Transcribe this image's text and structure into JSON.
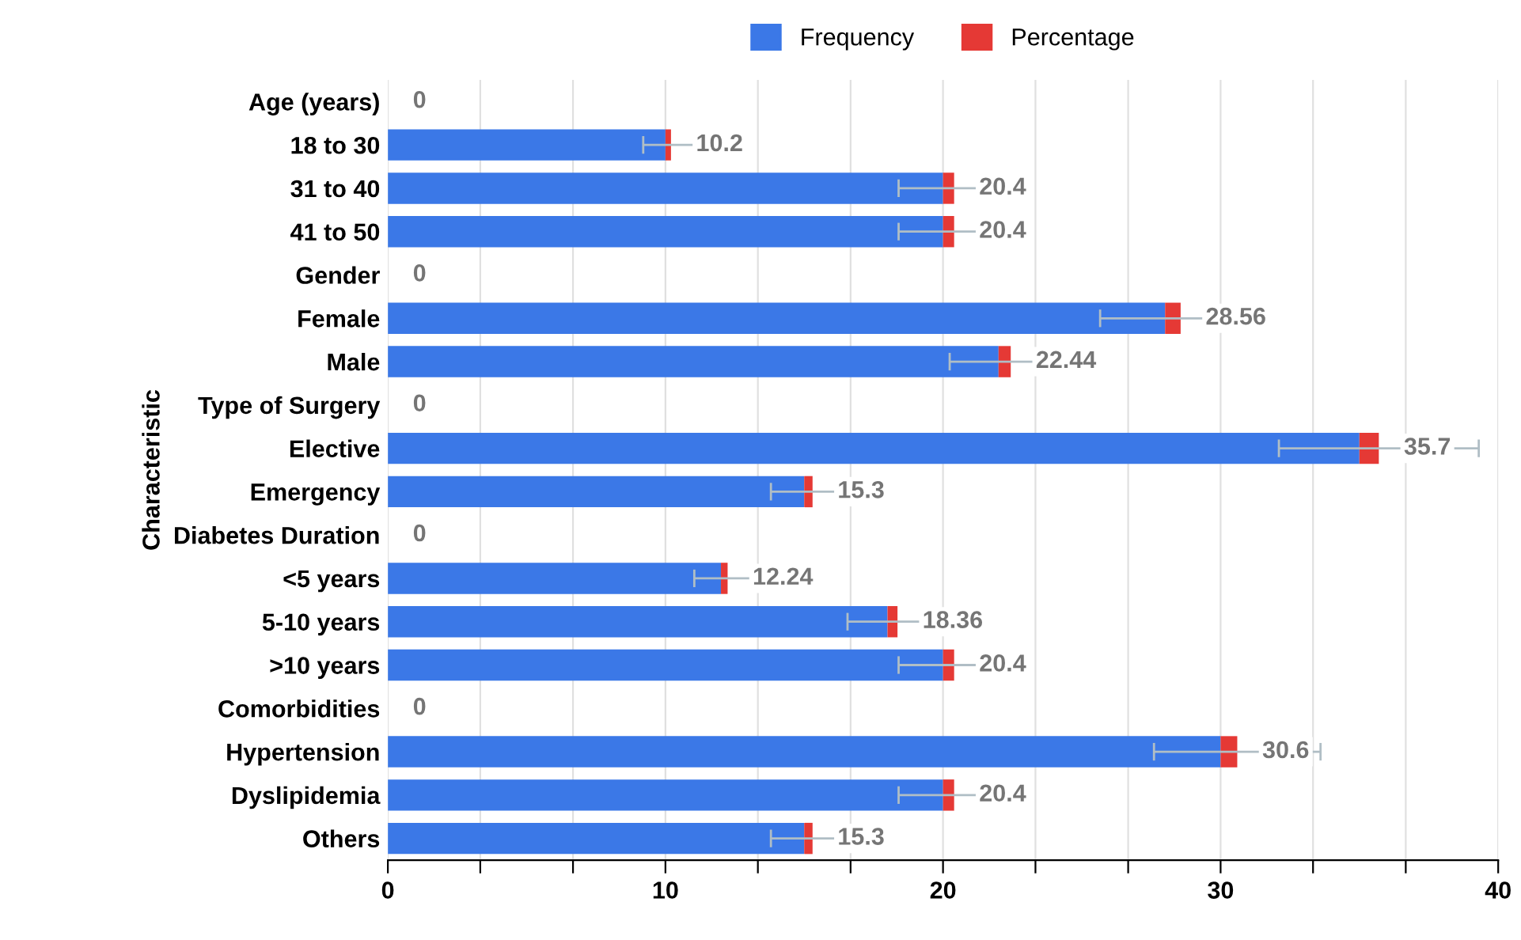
{
  "chart_data": {
    "type": "bar",
    "orientation": "horizontal",
    "stacked": true,
    "ylabel": "Characteristic",
    "categories": [
      "Age (years)",
      "18 to 30",
      "31 to 40",
      "41 to 50",
      "Gender",
      "Female",
      "Male",
      "Type of Surgery",
      "Elective",
      "Emergency",
      "Diabetes Duration",
      "<5 years",
      "5-10 years",
      ">10 years",
      "Comorbidities",
      "Hypertension",
      "Dyslipidemia",
      "Others"
    ],
    "series": [
      {
        "name": "Frequency",
        "color": "#3b78e7",
        "values": [
          0,
          10,
          20,
          20,
          0,
          28,
          22,
          0,
          35,
          15,
          0,
          12,
          18,
          20,
          0,
          30,
          20,
          15
        ]
      },
      {
        "name": "Percentage",
        "color": "#e53935",
        "values": [
          0,
          0.2,
          0.4,
          0.4,
          0,
          0.56,
          0.44,
          0,
          0.7,
          0.3,
          0,
          0.24,
          0.36,
          0.4,
          0,
          0.6,
          0.4,
          0.3
        ],
        "errors": [
          null,
          1,
          2,
          2,
          null,
          2.9,
          2.2,
          null,
          3.6,
          1.5,
          null,
          1.2,
          1.8,
          2,
          null,
          3,
          2,
          1.5
        ]
      }
    ],
    "totals": [
      "0",
      "10.2",
      "20.4",
      "20.4",
      "0",
      "28.56",
      "22.44",
      "0",
      "35.7",
      "15.3",
      "0",
      "12.24",
      "18.36",
      "20.4",
      "0",
      "30.6",
      "20.4",
      "15.3"
    ],
    "xlim": [
      0,
      40
    ],
    "xticks": [
      0,
      {
        "value": 3.33,
        "label": null
      },
      {
        "value": 6.67,
        "label": null
      },
      10,
      {
        "value": 13.33,
        "label": null
      },
      {
        "value": 16.67,
        "label": null
      },
      20,
      {
        "value": 23.33,
        "label": null
      },
      {
        "value": 26.67,
        "label": null
      },
      30,
      {
        "value": 33.33,
        "label": null
      },
      {
        "value": 36.67,
        "label": null
      },
      40
    ],
    "grid": "x",
    "legend": "top"
  }
}
